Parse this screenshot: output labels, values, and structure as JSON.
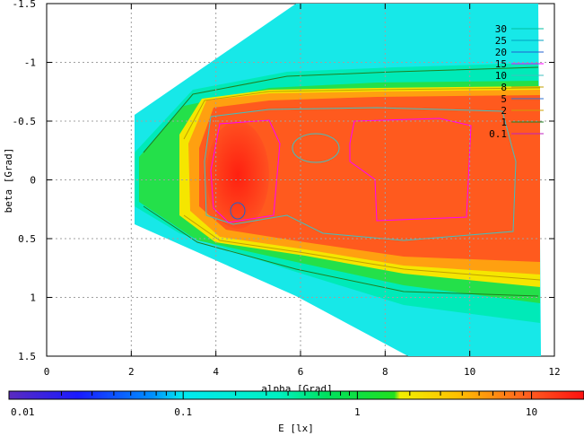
{
  "chart_data": {
    "type": "heatmap",
    "title": "",
    "xlabel": "alpha [Grad]",
    "ylabel": "beta [Grad]",
    "xlim": [
      0,
      12
    ],
    "ylim": [
      -1.5,
      1.5
    ],
    "y_axis_inverted": true,
    "x_ticks": [
      "0",
      "2",
      "4",
      "6",
      "8",
      "10",
      "12"
    ],
    "y_ticks": [
      "-1.5",
      "-1",
      "-0.5",
      "0",
      "0.5",
      "1",
      "1.5"
    ],
    "grid": true,
    "colorbar": {
      "label": "E [lx]",
      "scale": "log",
      "range": [
        0.01,
        20
      ],
      "ticks": [
        "0.01",
        "0.1",
        "1",
        "10"
      ]
    },
    "contour_levels": [
      {
        "label": "30",
        "color": "#00bfa0"
      },
      {
        "label": "25",
        "color": "#00a0c0"
      },
      {
        "label": "20",
        "color": "#2060d0"
      },
      {
        "label": "15",
        "color": "#ff00ff"
      },
      {
        "label": "10",
        "color": "#40c0c0"
      },
      {
        "label": "8",
        "color": "#c0a000"
      },
      {
        "label": "5",
        "color": "#3070d0"
      },
      {
        "label": "2",
        "color": "#d0a000"
      },
      {
        "label": "1",
        "color": "#208020"
      },
      {
        "label": "0.1",
        "color": "#c020c0"
      }
    ],
    "legend_position": "top-right"
  }
}
